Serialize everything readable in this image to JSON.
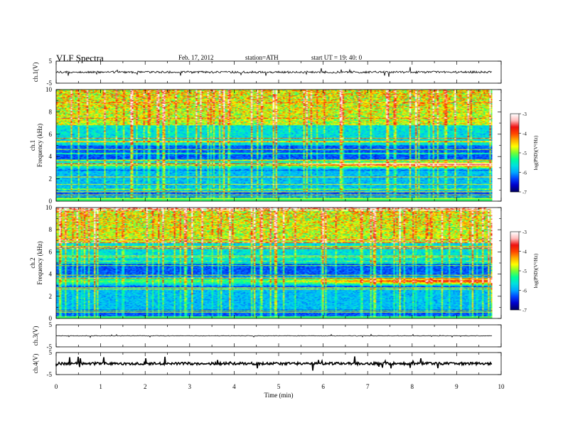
{
  "header": {
    "title": "VLF  Spectra",
    "date": "Feb. 17, 2012",
    "station": "station=ATH",
    "start": "start  UT  =   19: 40: 0"
  },
  "chart_data": {
    "type": "heatmap",
    "xlabel": "Time  (min)",
    "xlim": [
      0,
      10
    ],
    "xticks": [
      "0",
      "1",
      "2",
      "3",
      "4",
      "5",
      "6",
      "7",
      "8",
      "9",
      "10"
    ],
    "panels": [
      {
        "id": "ch1-waveform",
        "type": "line",
        "ylabel": "ch.1(V)",
        "ylim": [
          -5,
          5
        ],
        "yticks": [
          "5",
          "-5"
        ],
        "baseline": 0.0,
        "note_color": "#000000"
      },
      {
        "id": "ch1-spectrogram",
        "type": "heatmap",
        "ylabel_line1": "ch.1",
        "ylabel_line2": "Frequency  (kHz)",
        "ylim": [
          0,
          10
        ],
        "yticks": [
          "0",
          "2",
          "4",
          "6",
          "8",
          "10"
        ],
        "colorbar": {
          "label": "log(PSD)(V²/Hz)",
          "range": [
            -7,
            -3
          ],
          "ticks": [
            "-3",
            "-4",
            "-5",
            "-6",
            "-7"
          ]
        },
        "features": {
          "band_center_khz": 3.3,
          "band_start_khz": 3.0,
          "band_end_khz": 3.4,
          "strong_line_khz": 0.3
        }
      },
      {
        "id": "ch2-spectrogram",
        "type": "heatmap",
        "ylabel_line1": "ch.2",
        "ylabel_line2": "Frequency  (kHz)",
        "ylim": [
          0,
          10
        ],
        "yticks": [
          "0",
          "2",
          "4",
          "6",
          "8",
          "10"
        ],
        "colorbar": {
          "label": "log(PSD)(V²/Hz)",
          "range": [
            -7,
            -3
          ],
          "ticks": [
            "-3",
            "-4",
            "-5",
            "-6",
            "-7"
          ]
        },
        "features": {
          "band_center_khz": 3.3,
          "band_start_khz": 3.0,
          "band_end_khz": 3.4,
          "strong_line_khz": 0.6
        }
      },
      {
        "id": "ch3-waveform",
        "type": "line",
        "ylabel": "ch.3(V)",
        "ylim": [
          -5,
          5
        ],
        "yticks": [
          "5",
          "-5"
        ],
        "baseline": 0.0
      },
      {
        "id": "ch4-waveform",
        "type": "line",
        "ylabel": "ch.4(V)",
        "ylim": [
          -5,
          5
        ],
        "yticks": [
          "5",
          "-5"
        ],
        "baseline": 0.0
      }
    ],
    "data_end_min": 9.8,
    "colormap": [
      "#000066",
      "#0000cc",
      "#0044ff",
      "#00aaff",
      "#00e0e0",
      "#00ff99",
      "#77ff33",
      "#ffff00",
      "#ffaa00",
      "#ff4400",
      "#ee1111",
      "#ffbbbb",
      "#ffffff"
    ]
  }
}
